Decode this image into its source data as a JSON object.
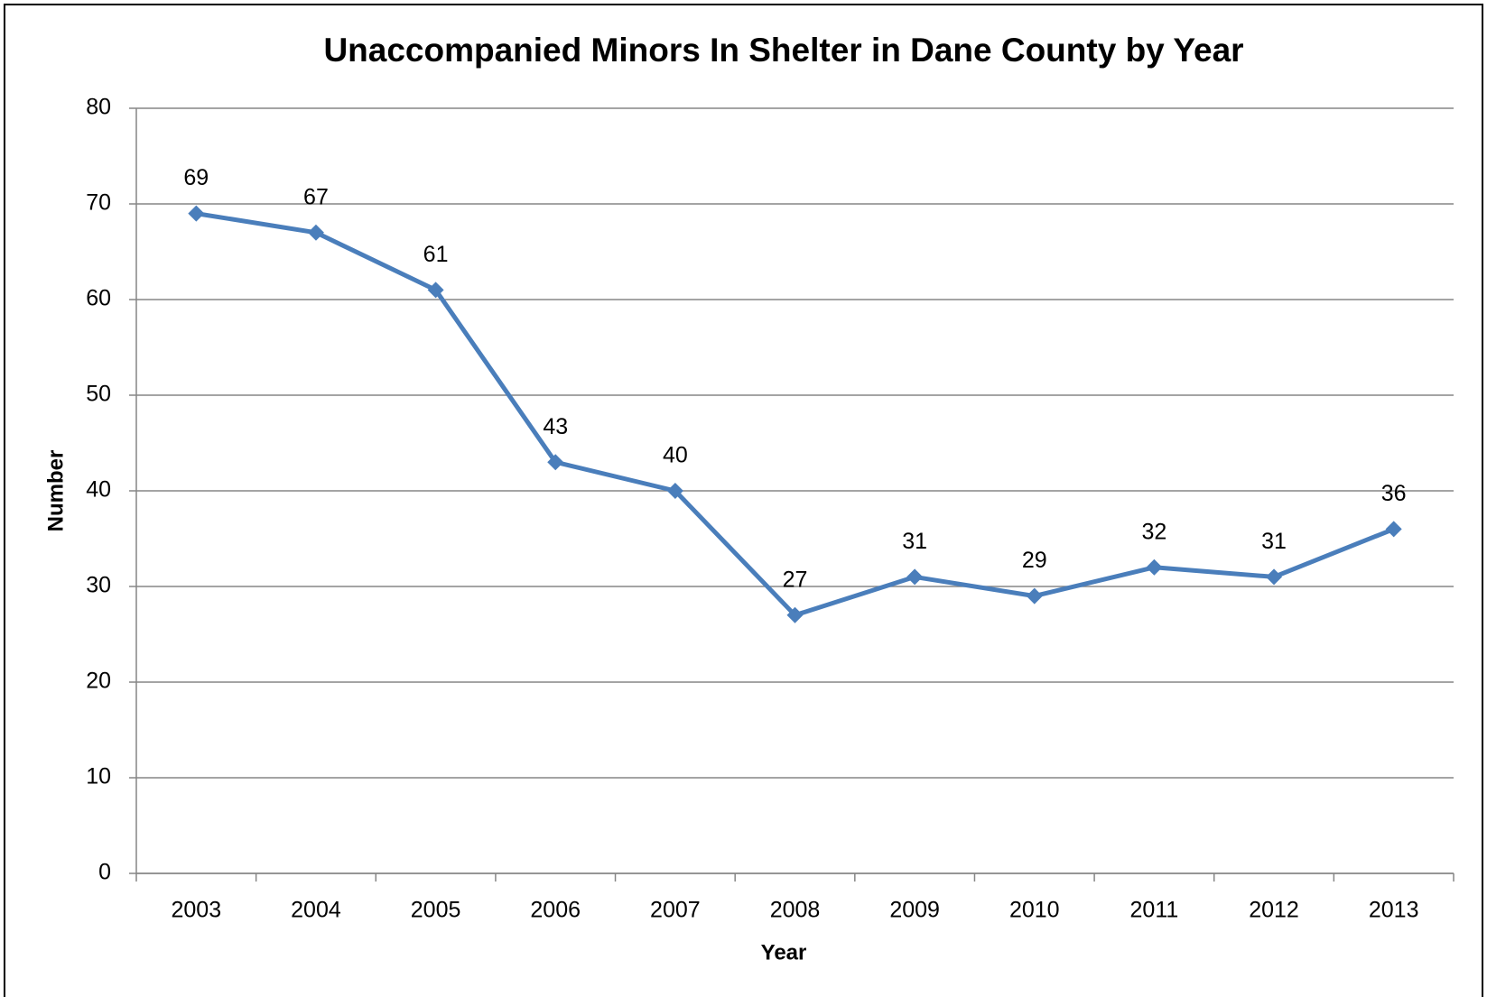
{
  "chart_data": {
    "type": "line",
    "title": "Unaccompanied Minors In Shelter in Dane County by Year",
    "x_label": "Year",
    "y_label": "Number",
    "categories": [
      "2003",
      "2004",
      "2005",
      "2006",
      "2007",
      "2008",
      "2009",
      "2010",
      "2011",
      "2012",
      "2013"
    ],
    "series": [
      {
        "name": "Number",
        "color": "#4a7ebb",
        "values": [
          69,
          67,
          61,
          43,
          40,
          27,
          31,
          29,
          32,
          31,
          36
        ]
      }
    ],
    "ylim": [
      0,
      80
    ],
    "yticks": [
      0,
      10,
      20,
      30,
      40,
      50,
      60,
      70,
      80
    ],
    "grid": true,
    "legend": false,
    "data_labels": true
  }
}
